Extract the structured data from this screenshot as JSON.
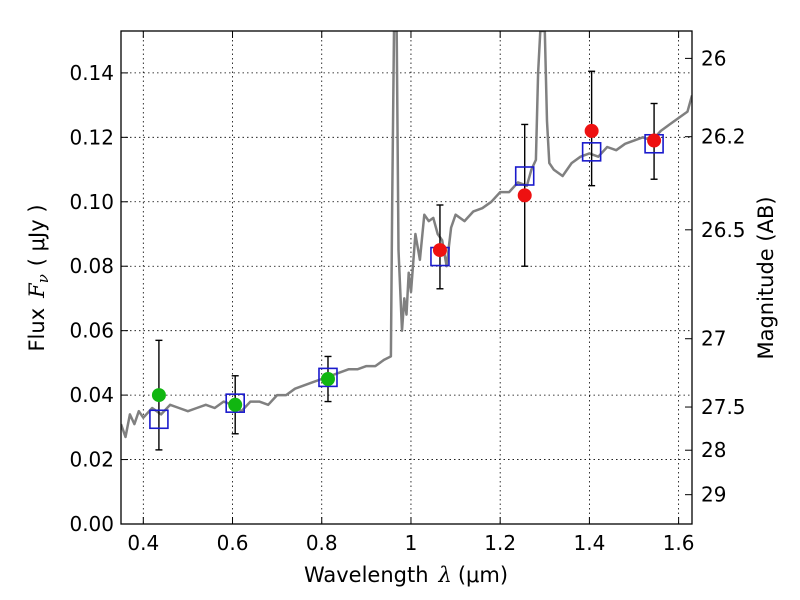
{
  "chart_data": {
    "type": "scatter",
    "xlabel_text": "Wavelength",
    "xlabel_symbol": "λ",
    "xlabel_unit": "(μm)",
    "ylabel_text": "Flux",
    "ylabel_symbol": "F",
    "ylabel_subscript": "ν",
    "ylabel_unit": "( μJy )",
    "y2label": "Magnitude (AB)",
    "xlim": [
      0.35,
      1.63
    ],
    "ylim": [
      0.0,
      0.153
    ],
    "grid": true,
    "x_ticks": [
      {
        "value": 0.4,
        "label": "0.4"
      },
      {
        "value": 0.6,
        "label": "0.6"
      },
      {
        "value": 0.8,
        "label": "0.8"
      },
      {
        "value": 1.0,
        "label": "1"
      },
      {
        "value": 1.2,
        "label": "1.2"
      },
      {
        "value": 1.4,
        "label": "1.4"
      },
      {
        "value": 1.6,
        "label": "1.6"
      }
    ],
    "y_ticks": [
      {
        "value": 0.0,
        "label": "0.00"
      },
      {
        "value": 0.02,
        "label": "0.02"
      },
      {
        "value": 0.04,
        "label": "0.04"
      },
      {
        "value": 0.06,
        "label": "0.06"
      },
      {
        "value": 0.08,
        "label": "0.08"
      },
      {
        "value": 0.1,
        "label": "0.10"
      },
      {
        "value": 0.12,
        "label": "0.12"
      },
      {
        "value": 0.14,
        "label": "0.14"
      }
    ],
    "y2_ticks": [
      {
        "flux": 0.1445,
        "label": "26"
      },
      {
        "flux": 0.1202,
        "label": "26.2"
      },
      {
        "flux": 0.0913,
        "label": "26.5"
      },
      {
        "flux": 0.0575,
        "label": "27"
      },
      {
        "flux": 0.0363,
        "label": "27.5"
      },
      {
        "flux": 0.0229,
        "label": "28"
      },
      {
        "flux": 0.0091,
        "label": "29"
      }
    ],
    "series": [
      {
        "name": "observed (green)",
        "color": "#11b611",
        "points": [
          {
            "x": 0.435,
            "y": 0.04
          },
          {
            "x": 0.606,
            "y": 0.037
          },
          {
            "x": 0.814,
            "y": 0.045
          }
        ]
      },
      {
        "name": "observed (red)",
        "color": "#ee1111",
        "points": [
          {
            "x": 1.065,
            "y": 0.085
          },
          {
            "x": 1.255,
            "y": 0.102
          },
          {
            "x": 1.405,
            "y": 0.122
          },
          {
            "x": 1.545,
            "y": 0.119
          }
        ]
      },
      {
        "name": "model photometry",
        "color": "#1a1acc",
        "points": [
          {
            "x": 0.435,
            "y": 0.0325,
            "yerr_low": 0.023,
            "yerr_high": 0.057
          },
          {
            "x": 0.606,
            "y": 0.0375,
            "yerr_low": 0.028,
            "yerr_high": 0.046
          },
          {
            "x": 0.814,
            "y": 0.0455,
            "yerr_low": 0.038,
            "yerr_high": 0.052
          },
          {
            "x": 1.065,
            "y": 0.083,
            "yerr_low": 0.073,
            "yerr_high": 0.099
          },
          {
            "x": 1.255,
            "y": 0.108,
            "yerr_low": 0.08,
            "yerr_high": 0.124
          },
          {
            "x": 1.405,
            "y": 0.1155,
            "yerr_low": 0.105,
            "yerr_high": 0.1405
          },
          {
            "x": 1.545,
            "y": 0.118,
            "yerr_low": 0.107,
            "yerr_high": 0.1305
          }
        ]
      }
    ],
    "model_spectrum": {
      "color": "#808080",
      "points": [
        [
          0.35,
          0.031
        ],
        [
          0.36,
          0.027
        ],
        [
          0.37,
          0.034
        ],
        [
          0.38,
          0.031
        ],
        [
          0.39,
          0.035
        ],
        [
          0.4,
          0.033
        ],
        [
          0.42,
          0.036
        ],
        [
          0.44,
          0.034
        ],
        [
          0.46,
          0.037
        ],
        [
          0.48,
          0.036
        ],
        [
          0.5,
          0.035
        ],
        [
          0.52,
          0.036
        ],
        [
          0.54,
          0.037
        ],
        [
          0.56,
          0.036
        ],
        [
          0.58,
          0.038
        ],
        [
          0.6,
          0.037
        ],
        [
          0.62,
          0.035
        ],
        [
          0.64,
          0.038
        ],
        [
          0.66,
          0.038
        ],
        [
          0.68,
          0.037
        ],
        [
          0.7,
          0.04
        ],
        [
          0.72,
          0.04
        ],
        [
          0.74,
          0.042
        ],
        [
          0.76,
          0.043
        ],
        [
          0.78,
          0.044
        ],
        [
          0.8,
          0.045
        ],
        [
          0.82,
          0.046
        ],
        [
          0.84,
          0.047
        ],
        [
          0.86,
          0.048
        ],
        [
          0.88,
          0.048
        ],
        [
          0.9,
          0.049
        ],
        [
          0.92,
          0.049
        ],
        [
          0.94,
          0.051
        ],
        [
          0.955,
          0.052
        ],
        [
          0.958,
          0.1
        ],
        [
          0.962,
          0.153
        ],
        [
          0.968,
          0.153
        ],
        [
          0.972,
          0.085
        ],
        [
          0.98,
          0.06
        ],
        [
          0.985,
          0.07
        ],
        [
          0.99,
          0.065
        ],
        [
          0.995,
          0.078
        ],
        [
          1.0,
          0.072
        ],
        [
          1.01,
          0.09
        ],
        [
          1.02,
          0.082
        ],
        [
          1.03,
          0.096
        ],
        [
          1.04,
          0.094
        ],
        [
          1.05,
          0.095
        ],
        [
          1.06,
          0.09
        ],
        [
          1.07,
          0.088
        ],
        [
          1.08,
          0.08
        ],
        [
          1.09,
          0.092
        ],
        [
          1.1,
          0.096
        ],
        [
          1.12,
          0.094
        ],
        [
          1.14,
          0.097
        ],
        [
          1.16,
          0.098
        ],
        [
          1.18,
          0.1
        ],
        [
          1.2,
          0.103
        ],
        [
          1.22,
          0.103
        ],
        [
          1.24,
          0.106
        ],
        [
          1.26,
          0.105
        ],
        [
          1.27,
          0.11
        ],
        [
          1.28,
          0.113
        ],
        [
          1.285,
          0.14
        ],
        [
          1.29,
          0.153
        ],
        [
          1.3,
          0.153
        ],
        [
          1.305,
          0.125
        ],
        [
          1.31,
          0.112
        ],
        [
          1.32,
          0.11
        ],
        [
          1.34,
          0.108
        ],
        [
          1.36,
          0.112
        ],
        [
          1.38,
          0.114
        ],
        [
          1.4,
          0.115
        ],
        [
          1.42,
          0.114
        ],
        [
          1.44,
          0.117
        ],
        [
          1.46,
          0.116
        ],
        [
          1.48,
          0.118
        ],
        [
          1.5,
          0.119
        ],
        [
          1.52,
          0.12
        ],
        [
          1.54,
          0.119
        ],
        [
          1.56,
          0.122
        ],
        [
          1.58,
          0.124
        ],
        [
          1.6,
          0.126
        ],
        [
          1.62,
          0.128
        ],
        [
          1.63,
          0.133
        ]
      ]
    }
  }
}
